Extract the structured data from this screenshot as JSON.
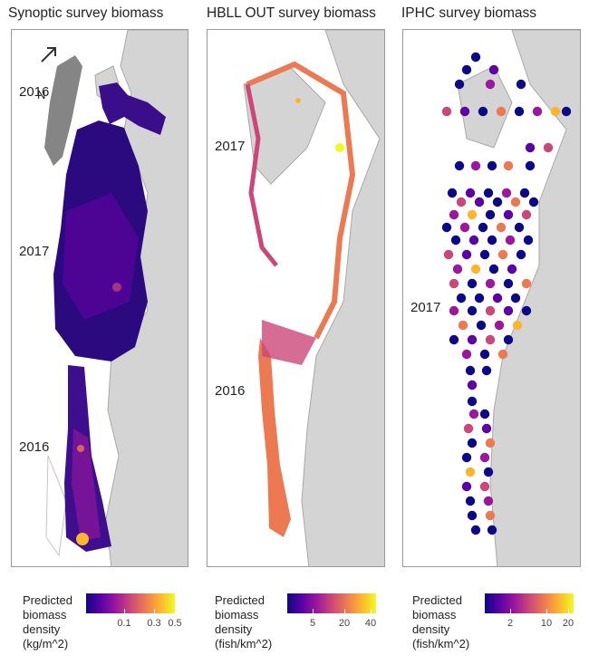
{
  "panels": [
    {
      "title": "Synoptic survey biomass",
      "year_labels": [
        "2016",
        "2017",
        "2016"
      ],
      "north_label": "N"
    },
    {
      "title": "HBLL OUT survey biomass",
      "year_labels": [
        "2017",
        "2016"
      ]
    },
    {
      "title": "IPHC survey biomass",
      "year_labels": [
        "2017"
      ]
    }
  ],
  "legends": [
    {
      "title": "Predicted\nbiomass\ndensity\n(kg/m^2)",
      "ticks": [
        "0.1",
        "0.3",
        "0.5"
      ]
    },
    {
      "title": "Predicted\nbiomass\ndensity\n(fish/km^2)",
      "ticks": [
        "5",
        "20",
        "40"
      ]
    },
    {
      "title": "Predicted\nbiomass\ndensity\n(fish/km^2)",
      "ticks": [
        "2",
        "10",
        "20"
      ]
    }
  ],
  "colors": {
    "land": "#d4d4d4",
    "coastline": "#a8a8a8",
    "scale": [
      "#0d0887",
      "#5c01a6",
      "#9c179e",
      "#cc4778",
      "#ed7953",
      "#fdb42f",
      "#f0f921"
    ]
  },
  "icons": {
    "north_arrow": "north-arrow-icon"
  }
}
